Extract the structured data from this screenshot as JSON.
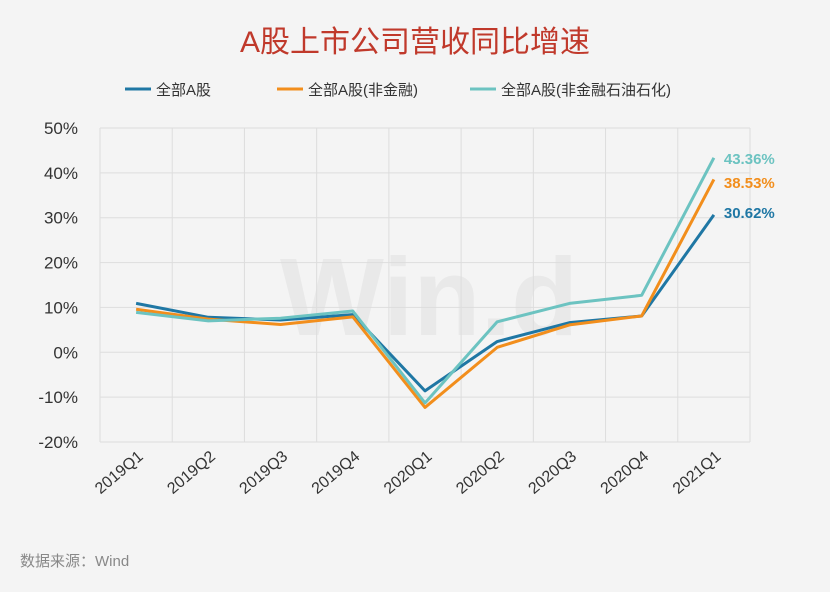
{
  "chart_data": {
    "type": "line",
    "title": "A股上市公司营收同比增速",
    "categories": [
      "2019Q1",
      "2019Q2",
      "2019Q3",
      "2019Q4",
      "2020Q1",
      "2020Q2",
      "2020Q3",
      "2020Q4",
      "2021Q1"
    ],
    "series": [
      {
        "name": "全部A股",
        "color": "#1f77a4",
        "values": [
          10.9,
          7.8,
          7.2,
          8.4,
          -8.6,
          2.4,
          6.6,
          8.1,
          30.62
        ],
        "end_label": "30.62%"
      },
      {
        "name": "全部A股(非金融)",
        "color": "#f28e1c",
        "values": [
          9.6,
          7.4,
          6.2,
          7.9,
          -12.3,
          1.1,
          6.1,
          8.1,
          38.53
        ],
        "end_label": "38.53%"
      },
      {
        "name": "全部A股(非金融石油石化)",
        "color": "#6cc3c1",
        "values": [
          8.9,
          7.0,
          7.6,
          9.2,
          -11.3,
          6.8,
          10.9,
          12.7,
          43.36
        ],
        "end_label": "43.36%"
      }
    ],
    "y_ticks": [
      "50%",
      "40%",
      "30%",
      "20%",
      "10%",
      "0%",
      "-10%",
      "-20%"
    ],
    "ylim": [
      -20,
      50
    ],
    "grid": true,
    "legend": "top",
    "source": "数据来源：Wind",
    "watermark": "Win.d",
    "xlabel": "",
    "ylabel": ""
  }
}
